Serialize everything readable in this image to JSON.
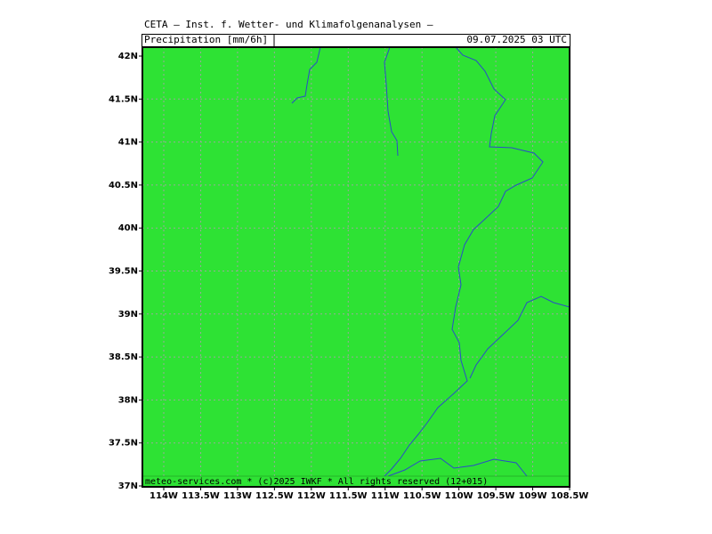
{
  "header": {
    "title": "CETA — Inst. f. Wetter- und Klimafolgenanalysen —",
    "field": "Precipitation [mm/6h]",
    "datetime": "09.07.2025 03 UTC"
  },
  "map": {
    "lat_labels": [
      "42N",
      "41.5N",
      "41N",
      "40.5N",
      "40N",
      "39.5N",
      "39N",
      "38.5N",
      "38N",
      "37.5N",
      "37N"
    ],
    "lon_labels": [
      "114W",
      "113.5W",
      "113W",
      "112.5W",
      "112W",
      "111.5W",
      "111W",
      "110.5W",
      "110W",
      "109.5W",
      "109W",
      "108.5W"
    ]
  },
  "footer": {
    "credit": "meteo-services.com * (c)2025 IWKF * All rights reserved (12+015)"
  }
}
